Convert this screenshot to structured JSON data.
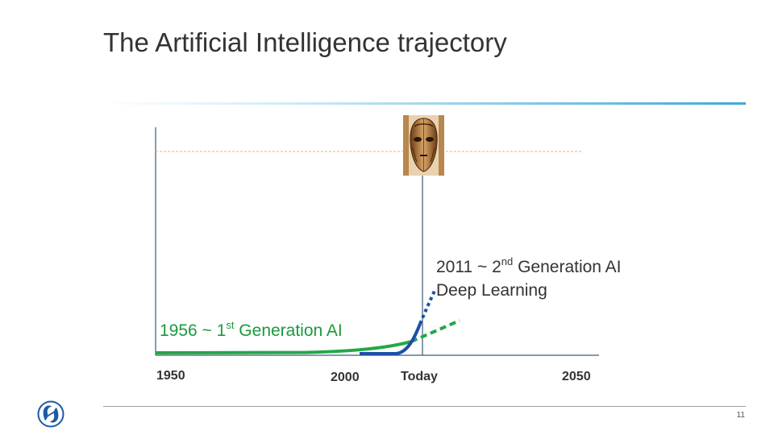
{
  "slide": {
    "title": "The Artificial Intelligence trajectory",
    "page_number": "11"
  },
  "timeline": {
    "ticks": [
      "1950",
      "2000",
      "Today",
      "2050"
    ]
  },
  "labels": {
    "second_gen_prefix": "2011 ~ 2",
    "second_gen_sup": "nd",
    "second_gen_suffix": " Generation AI",
    "second_gen_line2": "Deep Learning",
    "first_gen_prefix": "1956 ~ 1",
    "first_gen_sup": "st",
    "first_gen_suffix": " Generation AI"
  },
  "colors": {
    "first_gen_curve": "#22a845",
    "second_gen_curve": "#1d4fa8",
    "reference_line": "#f0b84a",
    "axis": "#3b5a7a"
  },
  "icons": {
    "logo": "ge-logo-icon",
    "robot": "robot-head-icon"
  }
}
